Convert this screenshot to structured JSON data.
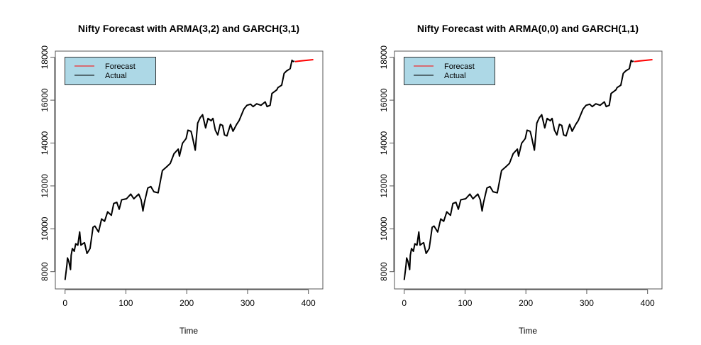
{
  "chart_data": [
    {
      "type": "line",
      "title": "Nifty Forecast with ARMA(3,2) and GARCH(3,1)",
      "xlabel": "Time",
      "ylabel": "",
      "xlim": [
        0,
        410
      ],
      "ylim": [
        7500,
        18200
      ],
      "xticks": [
        "0",
        "100",
        "200",
        "300",
        "400"
      ],
      "yticks": [
        "8000",
        "10000",
        "12000",
        "14000",
        "16000",
        "18000"
      ],
      "grid": false,
      "legend": {
        "placement": "top-left",
        "background": "#ADD8E6",
        "entries": [
          "Forecast",
          "Actual"
        ]
      },
      "series": [
        {
          "name": "Actual",
          "color": "#000000",
          "x": [
            0,
            3,
            4,
            6,
            9,
            10,
            12,
            15,
            17.5,
            21,
            24,
            26,
            29,
            32,
            36,
            41,
            46,
            49,
            55,
            60,
            65,
            70,
            76,
            80,
            85,
            89,
            93,
            101,
            108,
            113,
            121,
            125,
            128,
            130,
            136,
            141,
            146,
            153,
            160,
            167,
            173,
            179,
            186,
            188,
            193,
            199,
            202,
            207,
            209,
            214,
            218,
            222,
            226,
            231,
            235,
            240,
            243,
            247,
            251,
            255,
            259,
            262,
            266,
            272,
            276,
            282,
            286,
            294,
            299,
            305,
            309,
            315,
            322,
            329,
            332,
            337,
            340,
            348,
            350,
            356,
            360,
            364,
            370,
            373,
            375,
            377
          ],
          "y": [
            7614,
            8310,
            8640,
            8500,
            8100,
            8760,
            9080,
            8950,
            9300,
            9240,
            9850,
            9240,
            9300,
            9350,
            8850,
            9080,
            10070,
            10130,
            9850,
            10460,
            10350,
            10790,
            10630,
            11180,
            11240,
            10910,
            11350,
            11400,
            11620,
            11400,
            11620,
            11350,
            10830,
            11180,
            11900,
            11970,
            11730,
            11680,
            12720,
            12890,
            13050,
            13500,
            13720,
            13390,
            13990,
            14210,
            14600,
            14550,
            14330,
            13670,
            14930,
            15180,
            15320,
            14710,
            15150,
            15040,
            15150,
            14600,
            14380,
            14870,
            14820,
            14380,
            14330,
            14870,
            14550,
            14870,
            15040,
            15590,
            15760,
            15810,
            15700,
            15830,
            15760,
            15920,
            15700,
            15760,
            16310,
            16480,
            16590,
            16700,
            17250,
            17360,
            17470,
            17860,
            17800,
            17820
          ]
        },
        {
          "name": "Forecast",
          "color": "#FF0000",
          "x": [
            378,
            388,
            398,
            408
          ],
          "y": [
            17800,
            17830,
            17860,
            17890
          ]
        }
      ]
    },
    {
      "type": "line",
      "title": "Nifty Forecast with ARMA(0,0) and GARCH(1,1)",
      "xlabel": "Time",
      "ylabel": "",
      "xlim": [
        0,
        410
      ],
      "ylim": [
        7500,
        18200
      ],
      "xticks": [
        "0",
        "100",
        "200",
        "300",
        "400"
      ],
      "yticks": [
        "8000",
        "10000",
        "12000",
        "14000",
        "16000",
        "18000"
      ],
      "grid": false,
      "legend": {
        "placement": "top-left",
        "background": "#ADD8E6",
        "entries": [
          "Forecast",
          "Actual"
        ]
      },
      "series": [
        {
          "name": "Actual",
          "color": "#000000",
          "x": [
            0,
            3,
            4,
            6,
            9,
            10,
            12,
            15,
            17.5,
            21,
            24,
            26,
            29,
            32,
            36,
            41,
            46,
            49,
            55,
            60,
            65,
            70,
            76,
            80,
            85,
            89,
            93,
            101,
            108,
            113,
            121,
            125,
            128,
            130,
            136,
            141,
            146,
            153,
            160,
            167,
            173,
            179,
            186,
            188,
            193,
            199,
            202,
            207,
            209,
            214,
            218,
            222,
            226,
            231,
            235,
            240,
            243,
            247,
            251,
            255,
            259,
            262,
            266,
            272,
            276,
            282,
            286,
            294,
            299,
            305,
            309,
            315,
            322,
            329,
            332,
            337,
            340,
            348,
            350,
            356,
            360,
            364,
            370,
            373,
            375,
            377
          ],
          "y": [
            7614,
            8310,
            8640,
            8500,
            8100,
            8760,
            9080,
            8950,
            9300,
            9240,
            9850,
            9240,
            9300,
            9350,
            8850,
            9080,
            10070,
            10130,
            9850,
            10460,
            10350,
            10790,
            10630,
            11180,
            11240,
            10910,
            11350,
            11400,
            11620,
            11400,
            11620,
            11350,
            10830,
            11180,
            11900,
            11970,
            11730,
            11680,
            12720,
            12890,
            13050,
            13500,
            13720,
            13390,
            13990,
            14210,
            14600,
            14550,
            14330,
            13670,
            14930,
            15180,
            15320,
            14710,
            15150,
            15040,
            15150,
            14600,
            14380,
            14870,
            14820,
            14380,
            14330,
            14870,
            14550,
            14870,
            15040,
            15590,
            15760,
            15810,
            15700,
            15830,
            15760,
            15920,
            15700,
            15760,
            16310,
            16480,
            16590,
            16700,
            17250,
            17360,
            17470,
            17860,
            17800,
            17820
          ]
        },
        {
          "name": "Forecast",
          "color": "#FF0000",
          "x": [
            378,
            388,
            398,
            408
          ],
          "y": [
            17800,
            17830,
            17860,
            17890
          ]
        }
      ]
    }
  ]
}
